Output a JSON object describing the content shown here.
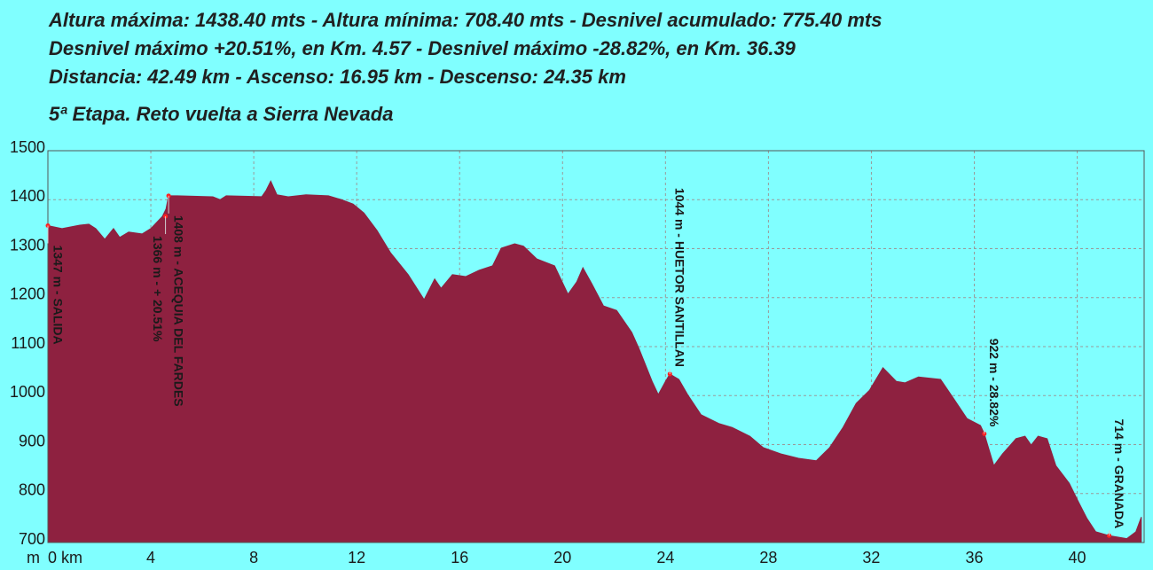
{
  "chart_data": {
    "type": "area",
    "header_lines": [
      "Altura máxima: 1438.40 mts - Altura mínima: 708.40 mts - Desnivel acumulado: 775.40 mts",
      "Desnivel máximo +20.51%, en Km. 4.57 - Desnivel máximo -28.82%, en Km. 36.39",
      "Distancia: 42.49 km - Ascenso: 16.95 km - Descenso: 24.35 km"
    ],
    "title": "5ª Etapa. Reto vuelta a Sierra Nevada",
    "y_axis_label": "m",
    "color": "#8e2140",
    "grid": true,
    "xlim": [
      0,
      42.6
    ],
    "ylim": [
      700,
      1500
    ],
    "xticks": [
      {
        "value": 0,
        "label": "0 km"
      },
      4,
      8,
      12,
      16,
      20,
      24,
      28,
      32,
      36,
      40
    ],
    "yticks": [
      700,
      800,
      900,
      1000,
      1100,
      1200,
      1300,
      1400,
      1500
    ],
    "x": [
      0,
      0.55,
      1.24,
      1.59,
      1.86,
      2.21,
      2.55,
      2.79,
      3.14,
      3.66,
      4,
      4.45,
      4.59,
      4.69,
      5.03,
      6.41,
      6.69,
      6.93,
      8.31,
      8.48,
      8.66,
      8.9,
      9.34,
      10.03,
      10.9,
      11.41,
      11.86,
      12.28,
      12.79,
      13.31,
      14,
      14.62,
      15.03,
      15.28,
      15.72,
      16.24,
      16.76,
      17.28,
      17.62,
      18.14,
      18.48,
      19,
      19.69,
      20.21,
      20.55,
      20.79,
      21.14,
      21.59,
      22.1,
      22.69,
      22.97,
      23.48,
      23.72,
      24,
      24.17,
      24.52,
      24.86,
      25.38,
      26.07,
      26.59,
      27.28,
      27.79,
      28.48,
      29.17,
      29.86,
      30.38,
      30.9,
      31.41,
      31.93,
      32.45,
      32.97,
      33.31,
      33.83,
      34.69,
      35.21,
      35.72,
      36.24,
      36.39,
      36.76,
      37.1,
      37.62,
      37.97,
      38.21,
      38.48,
      38.83,
      39.17,
      39.69,
      40.03,
      40.38,
      40.72,
      41.24,
      41.93,
      42.28,
      42.49
    ],
    "values": [
      1347,
      1341,
      1348,
      1350,
      1341,
      1319,
      1341,
      1323,
      1334,
      1330,
      1341,
      1366,
      1381,
      1408,
      1408,
      1406,
      1400,
      1408,
      1406,
      1419,
      1438,
      1410,
      1406,
      1410,
      1408,
      1400,
      1391,
      1373,
      1337,
      1292,
      1247,
      1196,
      1238,
      1219,
      1247,
      1243,
      1256,
      1265,
      1301,
      1310,
      1305,
      1279,
      1265,
      1207,
      1232,
      1261,
      1228,
      1183,
      1174,
      1129,
      1096,
      1029,
      1002,
      1029,
      1044,
      1033,
      1002,
      961,
      943,
      935,
      917,
      894,
      881,
      872,
      867,
      894,
      935,
      984,
      1011,
      1057,
      1029,
      1026,
      1038,
      1033,
      993,
      953,
      939,
      922,
      857,
      881,
      912,
      917,
      899,
      917,
      912,
      857,
      821,
      785,
      749,
      722,
      714,
      708,
      722,
      752
    ],
    "annotations": [
      {
        "x": 0,
        "y": 1347,
        "text": "1347 m - SALIDA"
      },
      {
        "x": 4.57,
        "y": 1366,
        "text": "1366 m - + 20.51%"
      },
      {
        "x": 4.69,
        "y": 1408,
        "text": "1408 m - ACEQUIA DEL FARDES"
      },
      {
        "x": 24.17,
        "y": 1044,
        "text": "1044 m - HUETOR SANTILLAN"
      },
      {
        "x": 36.39,
        "y": 922,
        "text": "922 m - 28.82%"
      },
      {
        "x": 41.24,
        "y": 714,
        "text": "714 m - GRANADA"
      }
    ]
  }
}
